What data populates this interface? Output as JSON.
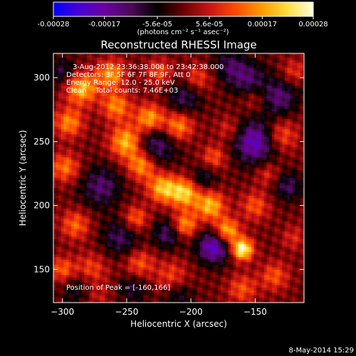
{
  "colorbar": {
    "tick_labels": [
      "-0.00028",
      "-0.00017",
      "-5.6e-05",
      "5.6e-05",
      "0.00017",
      "0.00028"
    ],
    "tick_values": [
      -0.00028,
      -0.00017,
      -5.6e-05,
      5.6e-05,
      0.00017,
      0.00028
    ],
    "range": [
      -0.00028,
      0.00028
    ],
    "unit_label": "(photons cm⁻² s⁻¹ asec⁻²)",
    "stops": [
      "#0000ff",
      "#4a00d6",
      "#6a00a0",
      "#4b0a55",
      "#000000",
      "#6a0000",
      "#c81414",
      "#ff4a00",
      "#ff9a00",
      "#ffe040",
      "#ffffe0"
    ]
  },
  "chart_data": {
    "type": "heatmap",
    "title": "Reconstructed RHESSI Image",
    "xlabel": "Heliocentric X (arcsec)",
    "ylabel": "Heliocentric Y (arcsec)",
    "xlim": [
      -307,
      -112
    ],
    "ylim": [
      124,
      319
    ],
    "x_ticks": [
      -300,
      -250,
      -200,
      -150
    ],
    "y_ticks": [
      150,
      200,
      250,
      300
    ],
    "peak_position": [
      -160,
      166
    ],
    "annotations": [
      "3-Aug-2012 23:36:38.000 to 23:42:38.000",
      "Detectors: 3F 5F 6F 7F 8F 9F, Att 0",
      "Energy Range: 12.0 - 25.0 keV",
      "Clean    Total counts: 7.46E+03"
    ],
    "peak_label": "Position of Peak = [-160,166]"
  },
  "footer": {
    "timestamp": "8-May-2014 15:29"
  }
}
